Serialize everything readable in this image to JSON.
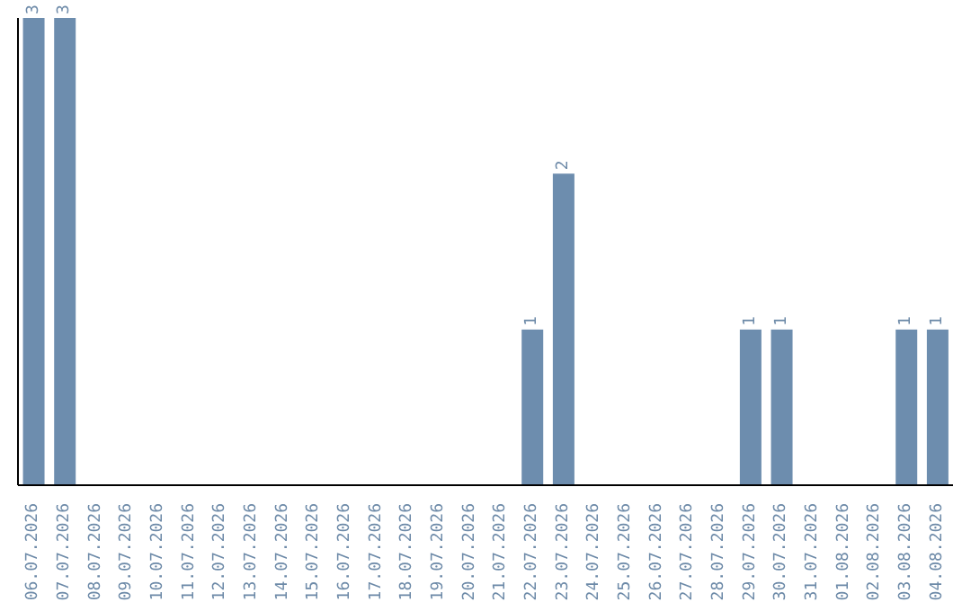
{
  "chart_data": {
    "type": "bar",
    "categories": [
      "06.07.2026",
      "07.07.2026",
      "08.07.2026",
      "09.07.2026",
      "10.07.2026",
      "11.07.2026",
      "12.07.2026",
      "13.07.2026",
      "14.07.2026",
      "15.07.2026",
      "16.07.2026",
      "17.07.2026",
      "18.07.2026",
      "19.07.2026",
      "20.07.2026",
      "21.07.2026",
      "22.07.2026",
      "23.07.2026",
      "24.07.2026",
      "25.07.2026",
      "26.07.2026",
      "27.07.2026",
      "28.07.2026",
      "29.07.2026",
      "30.07.2026",
      "31.07.2026",
      "01.08.2026",
      "02.08.2026",
      "03.08.2026",
      "04.08.2026"
    ],
    "values": [
      3,
      3,
      0,
      0,
      0,
      0,
      0,
      0,
      0,
      0,
      0,
      0,
      0,
      0,
      0,
      0,
      1,
      2,
      0,
      0,
      0,
      0,
      0,
      1,
      1,
      0,
      0,
      0,
      1,
      1
    ],
    "value_labels": [
      "3",
      "3",
      null,
      null,
      null,
      null,
      null,
      null,
      null,
      null,
      null,
      null,
      null,
      null,
      null,
      null,
      "1",
      "2",
      null,
      null,
      null,
      null,
      null,
      "1",
      "1",
      null,
      null,
      null,
      "1",
      "1"
    ],
    "color": "#6d8dae",
    "relative": false
  }
}
